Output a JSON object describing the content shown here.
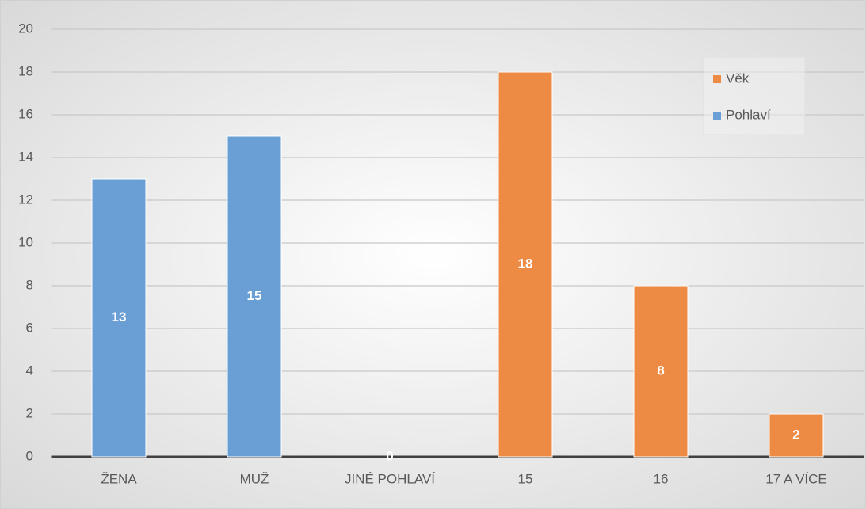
{
  "chart_data": {
    "type": "bar",
    "categories": [
      "ŽENA",
      "MUŽ",
      "JINÉ POHLAVÍ",
      "15",
      "16",
      "17 A VÍCE"
    ],
    "series": [
      {
        "name": "Věk",
        "color": "#ed8b45",
        "values": [
          null,
          null,
          null,
          18,
          8,
          2
        ]
      },
      {
        "name": "Pohlaví",
        "color": "#6a9fd6",
        "values": [
          13,
          15,
          0,
          null,
          null,
          null
        ]
      }
    ],
    "ylim": [
      0,
      20
    ],
    "yticks": [
      0,
      2,
      4,
      6,
      8,
      10,
      12,
      14,
      16,
      18,
      20
    ],
    "grid": true,
    "legend": "upper right",
    "data_labels": true
  }
}
